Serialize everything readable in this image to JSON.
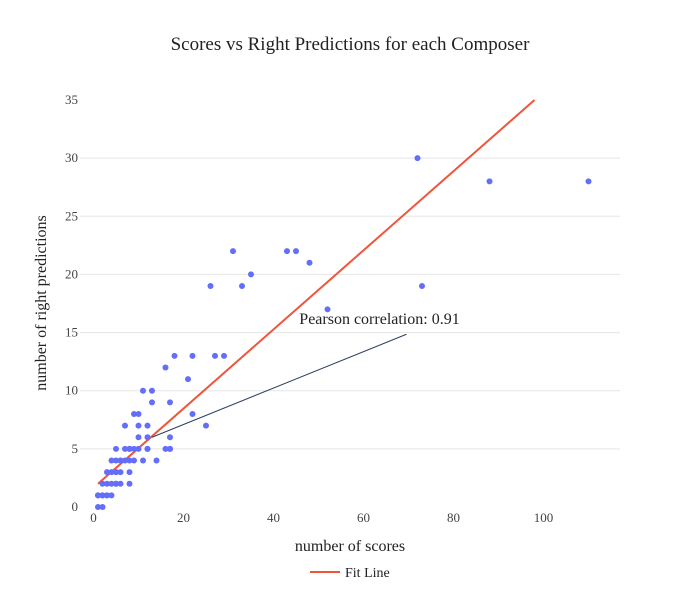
{
  "chart_data": {
    "type": "scatter",
    "title": "Scores vs Right Predictions for each Composer",
    "xlabel": "number of scores",
    "ylabel": "number of right predictions",
    "xlim": [
      -3,
      117
    ],
    "ylim": [
      0,
      35
    ],
    "xticks": [
      0,
      20,
      40,
      60,
      80,
      100
    ],
    "yticks": [
      0,
      5,
      10,
      15,
      20,
      25,
      30,
      35
    ],
    "grid": "horizontal",
    "legend": {
      "position": "bottom-center",
      "entries": [
        "Fit Line"
      ]
    },
    "annotation": {
      "text": "Pearson correlation: 0.91",
      "x": 64,
      "y": 15.2,
      "arrow_to": [
        13,
        6
      ]
    },
    "colors": {
      "points": "#636efa",
      "fit_line": "#ef553b",
      "grid": "#e5e5e5"
    },
    "series": [
      {
        "type": "line",
        "name": "Fit Line",
        "color": "#ef553b",
        "x": [
          1,
          98
        ],
        "y": [
          2,
          35
        ]
      },
      {
        "type": "scatter",
        "color": "#636efa",
        "x": [
          1,
          1,
          1,
          2,
          2,
          2,
          2,
          3,
          3,
          3,
          3,
          4,
          4,
          4,
          4,
          5,
          5,
          5,
          5,
          5,
          5,
          6,
          6,
          6,
          6,
          7,
          7,
          7,
          8,
          8,
          8,
          8,
          8,
          9,
          9,
          9,
          10,
          10,
          10,
          10,
          11,
          11,
          12,
          12,
          12,
          12,
          13,
          13,
          14,
          16,
          16,
          17,
          17,
          17,
          17,
          18,
          21,
          22,
          22,
          25,
          26,
          27,
          29,
          31,
          33,
          35,
          43,
          45,
          48,
          52,
          72,
          73,
          88,
          110
        ],
        "y": [
          0,
          1,
          1,
          0,
          1,
          2,
          1,
          1,
          2,
          3,
          1,
          3,
          4,
          2,
          1,
          2,
          3,
          4,
          5,
          3,
          2,
          3,
          4,
          2,
          4,
          4,
          5,
          7,
          5,
          3,
          2,
          4,
          5,
          8,
          5,
          4,
          8,
          6,
          7,
          5,
          10,
          4,
          5,
          6,
          7,
          5,
          10,
          9,
          4,
          5,
          12,
          5,
          6,
          9,
          5,
          13,
          11,
          8,
          13,
          7,
          19,
          13,
          13,
          22,
          19,
          20,
          22,
          22,
          21,
          17,
          30,
          19,
          28,
          28
        ]
      }
    ]
  }
}
